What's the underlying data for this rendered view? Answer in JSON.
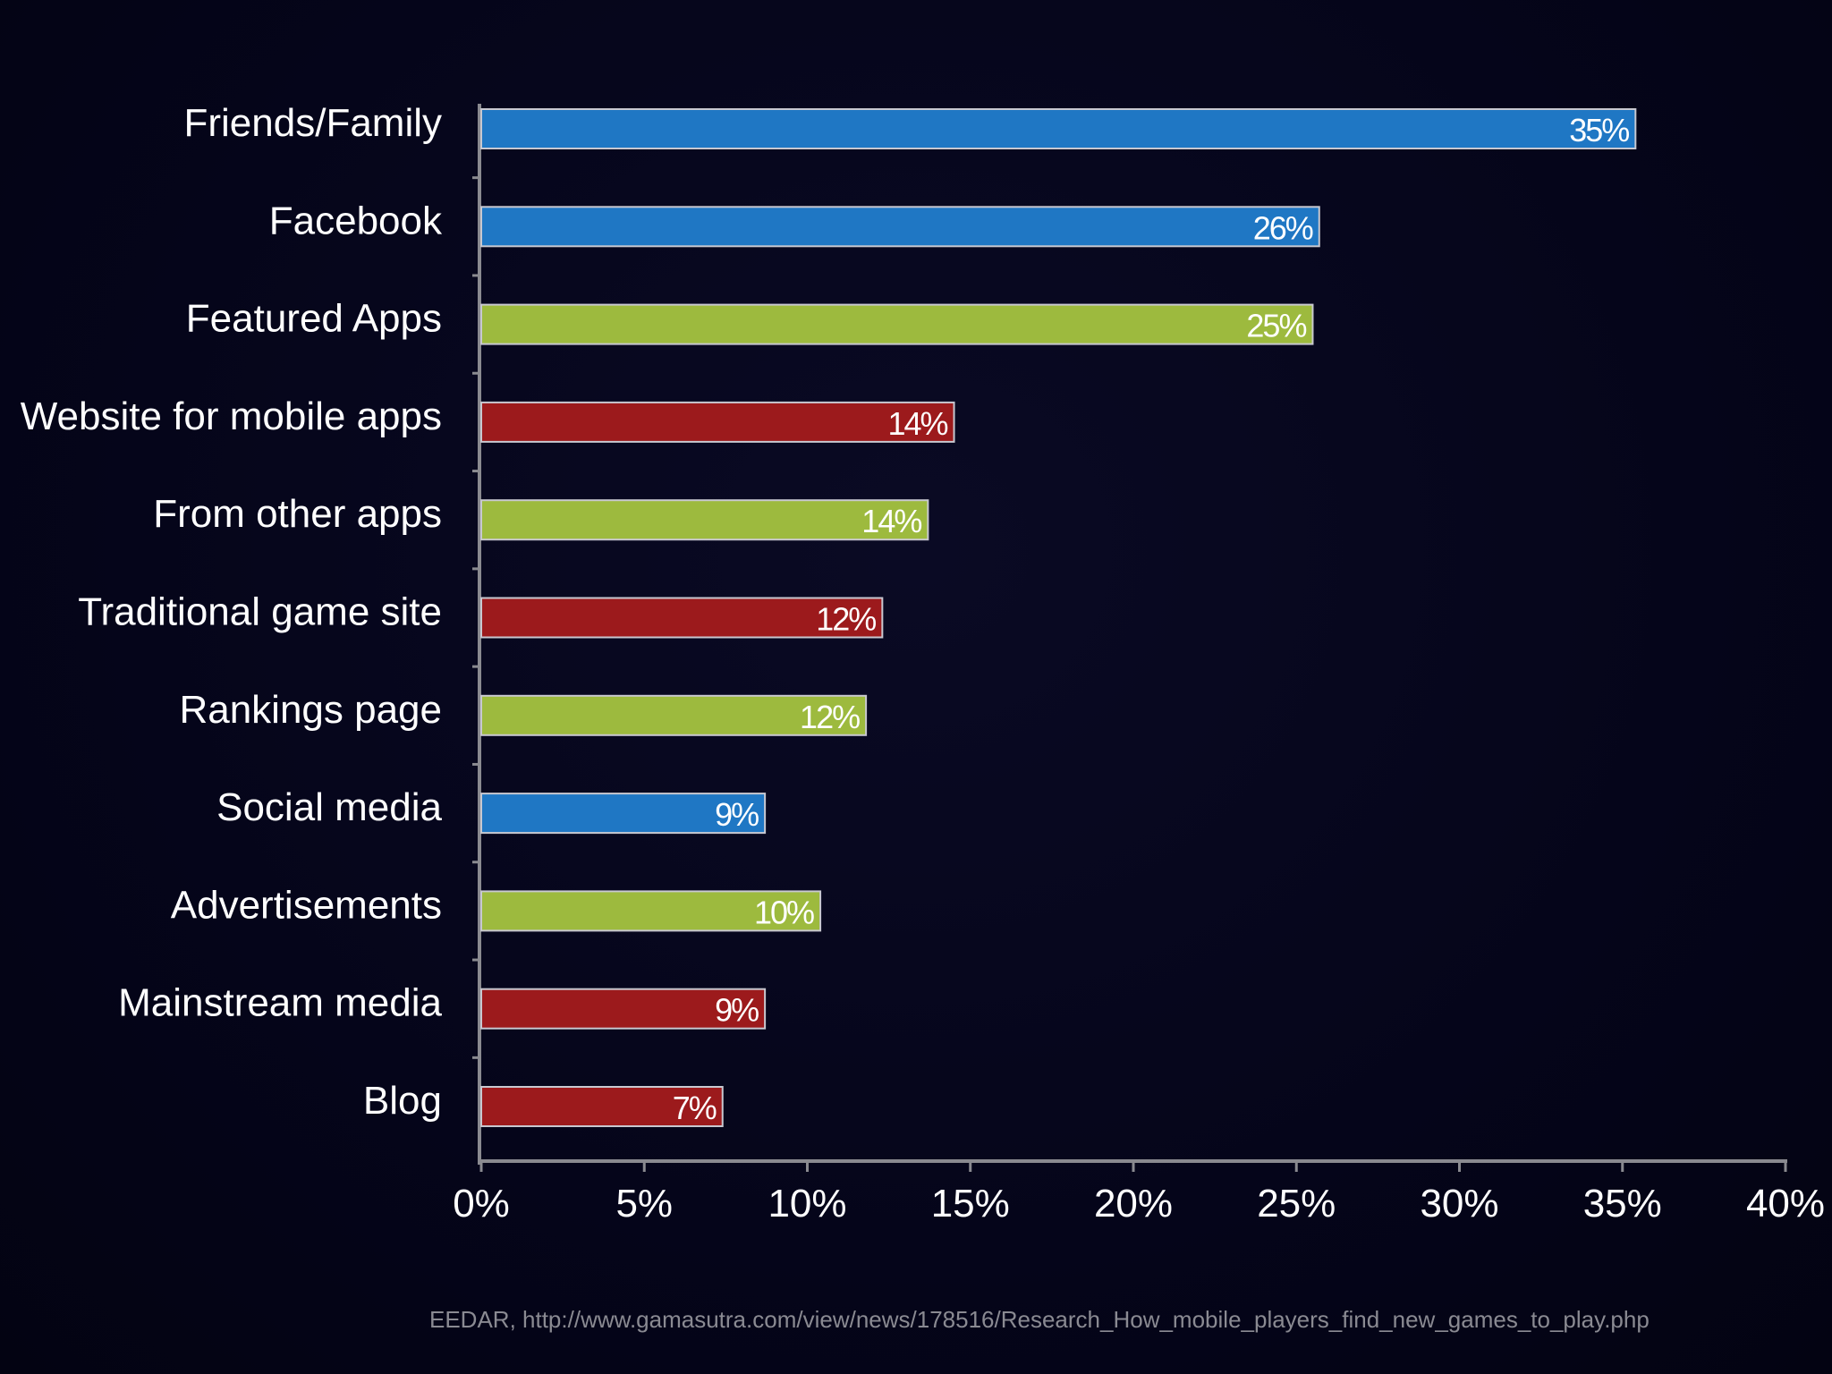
{
  "colors": {
    "background": "#05051a",
    "axis": "#8a8a90",
    "text": "#ffffff",
    "blue": "#1f77c4",
    "green": "#9dba3e",
    "red": "#9c1a1c"
  },
  "chart_data": {
    "type": "bar",
    "orientation": "horizontal",
    "categories": [
      "Friends/Family",
      "Facebook",
      "Featured Apps",
      "Website for mobile apps",
      "From other apps",
      "Traditional game site",
      "Rankings page",
      "Social media",
      "Advertisements",
      "Mainstream media",
      "Blog"
    ],
    "values": [
      35.4,
      25.7,
      25.5,
      14.5,
      13.7,
      12.3,
      11.8,
      8.7,
      10.4,
      8.7,
      7.4
    ],
    "data_labels": [
      "35%",
      "26%",
      "25%",
      "14%",
      "14%",
      "12%",
      "12%",
      "9%",
      "10%",
      "9%",
      "7%"
    ],
    "bar_colors": [
      "blue",
      "blue",
      "green",
      "red",
      "green",
      "red",
      "green",
      "blue",
      "green",
      "red",
      "red"
    ],
    "xlim": [
      0,
      40
    ],
    "xticks": [
      0,
      5,
      10,
      15,
      20,
      25,
      30,
      35,
      40
    ],
    "xtick_labels": [
      "0%",
      "5%",
      "10%",
      "15%",
      "20%",
      "25%",
      "30%",
      "35%",
      "40%"
    ],
    "title": "",
    "xlabel": "",
    "ylabel": "",
    "grid": false,
    "legend": "none"
  },
  "footer": {
    "source": "EEDAR, http://www.gamasutra.com/view/news/178516/Research_How_mobile_players_find_new_games_to_play.php"
  }
}
